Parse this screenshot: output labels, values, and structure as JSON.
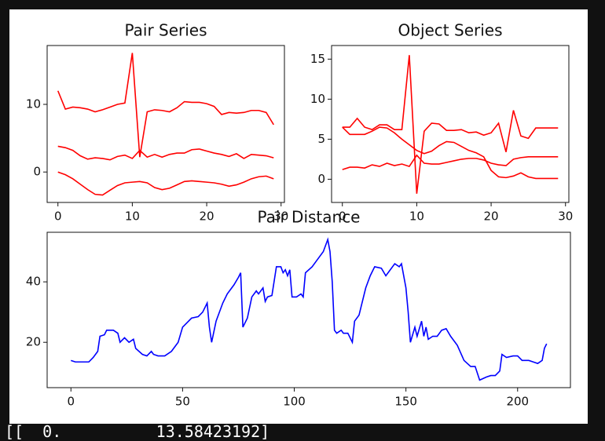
{
  "chart_data": [
    {
      "type": "line",
      "title": "Pair Series",
      "x": [
        0,
        1,
        2,
        3,
        4,
        5,
        6,
        7,
        8,
        9,
        10,
        11,
        12,
        13,
        14,
        15,
        16,
        17,
        18,
        19,
        20,
        21,
        22,
        23,
        24,
        25,
        26,
        27,
        28,
        29
      ],
      "series": [
        {
          "color": "#ff0000",
          "values": [
            12,
            9.3,
            9.6,
            9.5,
            9.3,
            8.9,
            9.2,
            9.6,
            10.0,
            10.2,
            17.6,
            2.2,
            8.9,
            9.2,
            9.1,
            8.9,
            9.5,
            10.4,
            10.3,
            10.3,
            10.1,
            9.7,
            8.5,
            8.8,
            8.7,
            8.8,
            9.1,
            9.1,
            8.8,
            7.0
          ]
        },
        {
          "color": "#ff0000",
          "values": [
            3.8,
            3.6,
            3.2,
            2.4,
            1.9,
            2.1,
            2.0,
            1.8,
            2.3,
            2.5,
            2.0,
            3.2,
            2.2,
            2.6,
            2.2,
            2.6,
            2.8,
            2.8,
            3.3,
            3.4,
            3.1,
            2.8,
            2.6,
            2.3,
            2.7,
            2.0,
            2.6,
            2.5,
            2.4,
            2.1
          ]
        },
        {
          "color": "#ff0000",
          "values": [
            0,
            -0.4,
            -1.0,
            -1.8,
            -2.6,
            -3.3,
            -3.4,
            -2.7,
            -2.0,
            -1.6,
            -1.5,
            -1.4,
            -1.6,
            -2.3,
            -2.6,
            -2.4,
            -1.9,
            -1.4,
            -1.3,
            -1.4,
            -1.5,
            -1.6,
            -1.8,
            -2.1,
            -1.9,
            -1.5,
            -1.0,
            -0.7,
            -0.6,
            -1.0
          ]
        }
      ],
      "xlim": [
        -1.45,
        30.45
      ],
      "xticks": [
        0,
        10,
        20,
        30
      ],
      "ylim": [
        -4.5,
        18.7
      ],
      "yticks": [
        0,
        10
      ]
    },
    {
      "type": "line",
      "title": "Object Series",
      "x": [
        0,
        1,
        2,
        3,
        4,
        5,
        6,
        7,
        8,
        9,
        10,
        11,
        12,
        13,
        14,
        15,
        16,
        17,
        18,
        19,
        20,
        21,
        22,
        23,
        24,
        25,
        26,
        27,
        28,
        29
      ],
      "series": [
        {
          "color": "#ff0000",
          "values": [
            6.5,
            6.5,
            7.6,
            6.5,
            6.2,
            6.8,
            6.8,
            6.2,
            6.2,
            15.5,
            -1.8,
            6.0,
            7.0,
            6.9,
            6.1,
            6.1,
            6.2,
            5.8,
            5.9,
            5.5,
            5.8,
            7.0,
            3.4,
            8.6,
            5.4,
            5.1,
            6.4,
            6.4,
            6.4,
            6.4
          ]
        },
        {
          "color": "#ff0000",
          "values": [
            6.5,
            5.6,
            5.6,
            5.6,
            6.0,
            6.5,
            6.4,
            5.8,
            5.0,
            4.3,
            3.6,
            3.2,
            3.5,
            4.2,
            4.7,
            4.6,
            4.1,
            3.6,
            3.3,
            2.8,
            1.1,
            0.3,
            0.2,
            0.4,
            0.8,
            0.3,
            0.1,
            0.1,
            0.1,
            0.1
          ]
        },
        {
          "color": "#ff0000",
          "values": [
            1.2,
            1.5,
            1.5,
            1.4,
            1.8,
            1.6,
            2.0,
            1.7,
            1.9,
            1.6,
            3.0,
            2.0,
            1.9,
            1.9,
            2.1,
            2.3,
            2.5,
            2.6,
            2.6,
            2.4,
            2.0,
            1.8,
            1.7,
            2.5,
            2.7,
            2.8,
            2.8,
            2.8,
            2.8,
            2.8
          ]
        }
      ],
      "xlim": [
        -1.45,
        30.45
      ],
      "xticks": [
        0,
        10,
        20,
        30
      ],
      "ylim": [
        -2.9,
        16.7
      ],
      "yticks": [
        0,
        5,
        10,
        15
      ]
    },
    {
      "type": "line",
      "title": "Pair Distance",
      "x": [
        0,
        2,
        5,
        8,
        10,
        12,
        13,
        15,
        16,
        19,
        21,
        22,
        24,
        26,
        28,
        29,
        32,
        34,
        36,
        37,
        39,
        42,
        45,
        48,
        50,
        52,
        54,
        57,
        59,
        61,
        62,
        63,
        65,
        68,
        70,
        73,
        75,
        76,
        77,
        79,
        81,
        83,
        84,
        86,
        87,
        88,
        90,
        92,
        94,
        95,
        96,
        97,
        98,
        99,
        101,
        103,
        104,
        105,
        108,
        110,
        113,
        115,
        116,
        117,
        118,
        119,
        121,
        122,
        124,
        126,
        127,
        129,
        132,
        134,
        136,
        139,
        141,
        143,
        145,
        147,
        148,
        150,
        151,
        152,
        154,
        155,
        157,
        158,
        159,
        160,
        162,
        164,
        166,
        168,
        170,
        173,
        176,
        179,
        181,
        183,
        186,
        188,
        190,
        192,
        193,
        195,
        198,
        200,
        202,
        205,
        207,
        209,
        211,
        212,
        213
      ],
      "series": [
        {
          "color": "#0000ff",
          "values": [
            14,
            13.5,
            13.5,
            13.5,
            15,
            17,
            22,
            22.5,
            24,
            24,
            23,
            20,
            21.5,
            20,
            21,
            18,
            16,
            15.5,
            17,
            16,
            15.5,
            15.5,
            17,
            20,
            25,
            26.5,
            28,
            28.5,
            30,
            33,
            25,
            20,
            27,
            33,
            36,
            39,
            41.5,
            43,
            25,
            28,
            35,
            37,
            36,
            38,
            33.5,
            35,
            35.5,
            45,
            45,
            43,
            44,
            42,
            44,
            35,
            35,
            36,
            35,
            43,
            45,
            47,
            50,
            54,
            50,
            40,
            24,
            23,
            24,
            23,
            23,
            20,
            27,
            29,
            38,
            42,
            45,
            44.5,
            42,
            44,
            46,
            45,
            46,
            38,
            30,
            20,
            25,
            22,
            27,
            22,
            25,
            21,
            22,
            22,
            24,
            24.5,
            22,
            19,
            14,
            12,
            12,
            7.5,
            8.5,
            9,
            9,
            10.5,
            16,
            15,
            15.5,
            15.5,
            14,
            14,
            13.5,
            13,
            14,
            18,
            19.5
          ]
        }
      ],
      "xlim": [
        -10.65,
        223.65
      ],
      "xticks": [
        0,
        50,
        100,
        150,
        200
      ],
      "ylim": [
        5.0,
        56.4
      ],
      "yticks": [
        20,
        40
      ]
    }
  ],
  "output_text": "[[  0.          13.58423192]"
}
